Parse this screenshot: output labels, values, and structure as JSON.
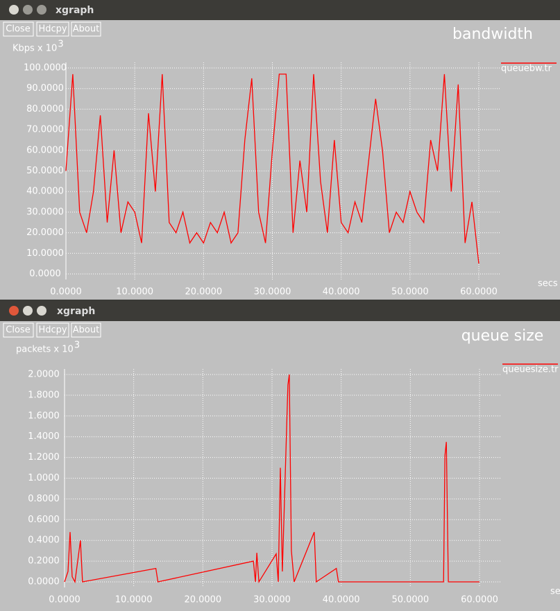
{
  "windows": [
    {
      "title": "xgraph",
      "buttons": [
        "Close",
        "Hdcpy",
        "About"
      ]
    },
    {
      "title": "xgraph",
      "buttons": [
        "Close",
        "Hdcpy",
        "About"
      ]
    }
  ],
  "chart_data": [
    {
      "type": "line",
      "title": "bandwidth",
      "y_label": "Kbps x 10",
      "y_label_exponent": "3",
      "x_label": "secs",
      "legend": "right",
      "grid": true,
      "series": [
        {
          "name": "queuebw.tr",
          "color": "#ff0000"
        }
      ],
      "x": [
        0,
        1,
        2,
        3,
        4,
        5,
        6,
        7,
        8,
        9,
        10,
        11,
        12,
        13,
        14,
        15,
        16,
        17,
        18,
        19,
        20,
        21,
        22,
        23,
        24,
        25,
        26,
        27,
        28,
        29,
        30,
        31,
        32,
        33,
        34,
        35,
        36,
        37,
        38,
        39,
        40,
        41,
        42,
        43,
        44,
        45,
        46,
        47,
        48,
        49,
        50,
        51,
        52,
        53,
        54,
        55,
        56,
        57,
        58,
        59,
        60
      ],
      "values": [
        50,
        97,
        30,
        20,
        40,
        77,
        25,
        60,
        20,
        35,
        30,
        15,
        78,
        40,
        97,
        25,
        20,
        30,
        15,
        20,
        15,
        25,
        20,
        30,
        15,
        20,
        65,
        95,
        30,
        15,
        60,
        97,
        97,
        20,
        55,
        30,
        97,
        45,
        20,
        65,
        25,
        20,
        35,
        25,
        55,
        85,
        60,
        20,
        30,
        25,
        40,
        30,
        25,
        65,
        50,
        97,
        40,
        92,
        15,
        35,
        5
      ],
      "xlim": [
        0,
        60
      ],
      "ylim": [
        0,
        100
      ],
      "xticks": [
        {
          "value": 0,
          "label": "0.0000"
        },
        {
          "value": 10,
          "label": "10.0000"
        },
        {
          "value": 20,
          "label": "20.0000"
        },
        {
          "value": 30,
          "label": "30.0000"
        },
        {
          "value": 40,
          "label": "40.0000"
        },
        {
          "value": 50,
          "label": "50.0000"
        },
        {
          "value": 60,
          "label": "60.0000"
        }
      ],
      "yticks": [
        {
          "value": 0,
          "label": "0.0000"
        },
        {
          "value": 10,
          "label": "10.0000"
        },
        {
          "value": 20,
          "label": "20.0000"
        },
        {
          "value": 30,
          "label": "30.0000"
        },
        {
          "value": 40,
          "label": "40.0000"
        },
        {
          "value": 50,
          "label": "50.0000"
        },
        {
          "value": 60,
          "label": "60.0000"
        },
        {
          "value": 70,
          "label": "70.0000"
        },
        {
          "value": 80,
          "label": "80.0000"
        },
        {
          "value": 90,
          "label": "90.0000"
        },
        {
          "value": 100,
          "label": "100.0000"
        }
      ]
    },
    {
      "type": "line",
      "title": "queue size",
      "y_label": "packets x 10",
      "y_label_exponent": "3",
      "x_label": "secs",
      "legend": "right",
      "grid": true,
      "series": [
        {
          "name": "queuesize.tr",
          "color": "#ff0000"
        }
      ],
      "x": [
        0,
        0.5,
        0.8,
        1.1,
        1.5,
        2.3,
        2.6,
        13.2,
        13.5,
        27.3,
        27.6,
        27.8,
        28.1,
        30.6,
        30.9,
        31.2,
        31.5,
        32.3,
        32.5,
        32.8,
        33.2,
        36.1,
        36.4,
        39.3,
        39.6,
        54.8,
        55,
        55.2,
        55.5,
        60
      ],
      "values": [
        0,
        0.1,
        0.48,
        0.05,
        0,
        0.4,
        0,
        0.13,
        0,
        0.2,
        0,
        0.28,
        0,
        0.27,
        0,
        1.1,
        0.1,
        1.9,
        2.0,
        0.3,
        0,
        0.48,
        0,
        0.13,
        0,
        0,
        1.22,
        1.35,
        0,
        0
      ],
      "xlim": [
        0,
        60
      ],
      "ylim": [
        0,
        2
      ],
      "xticks": [
        {
          "value": 0,
          "label": "0.0000"
        },
        {
          "value": 10,
          "label": "10.0000"
        },
        {
          "value": 20,
          "label": "20.0000"
        },
        {
          "value": 30,
          "label": "30.0000"
        },
        {
          "value": 40,
          "label": "40.0000"
        },
        {
          "value": 50,
          "label": "50.0000"
        },
        {
          "value": 60,
          "label": "60.0000"
        }
      ],
      "yticks": [
        {
          "value": 0,
          "label": "0.0000"
        },
        {
          "value": 0.2,
          "label": "0.2000"
        },
        {
          "value": 0.4,
          "label": "0.4000"
        },
        {
          "value": 0.6,
          "label": "0.6000"
        },
        {
          "value": 0.8,
          "label": "0.8000"
        },
        {
          "value": 1,
          "label": "1.0000"
        },
        {
          "value": 1.2,
          "label": "1.2000"
        },
        {
          "value": 1.4,
          "label": "1.4000"
        },
        {
          "value": 1.6,
          "label": "1.6000"
        },
        {
          "value": 1.8,
          "label": "1.8000"
        },
        {
          "value": 2,
          "label": "2.0000"
        }
      ]
    }
  ]
}
